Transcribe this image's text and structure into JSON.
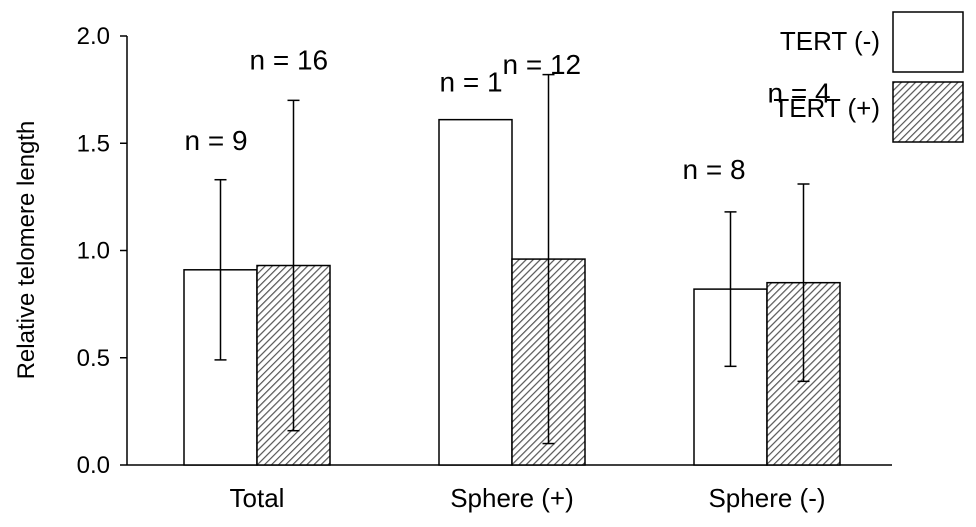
{
  "chart_data": {
    "type": "bar",
    "categories": [
      "Total",
      "Sphere (+)",
      "Sphere (-)"
    ],
    "ylabel": "Relative telomere length",
    "ylim": [
      0,
      2.0
    ],
    "yticks": [
      "0.0",
      "0.5",
      "1.0",
      "1.5",
      "2.0"
    ],
    "series": [
      {
        "name": "TERT (-)",
        "values": [
          0.91,
          1.61,
          0.82
        ],
        "error": [
          0.42,
          null,
          0.36
        ],
        "n_labels": [
          "n = 9",
          "n = 1",
          "n = 8"
        ],
        "fill": "#ffffff"
      },
      {
        "name": "TERT (+)",
        "values": [
          0.93,
          0.96,
          0.85
        ],
        "error": [
          0.77,
          0.86,
          0.46
        ],
        "n_labels": [
          "n = 16",
          "n = 12",
          "n = 4"
        ],
        "fill": "hatched"
      }
    ],
    "legend": "top-right",
    "grid": false,
    "colors": {
      "axis": "#000000",
      "bar_stroke": "#000000",
      "hatch": "#555555"
    }
  }
}
